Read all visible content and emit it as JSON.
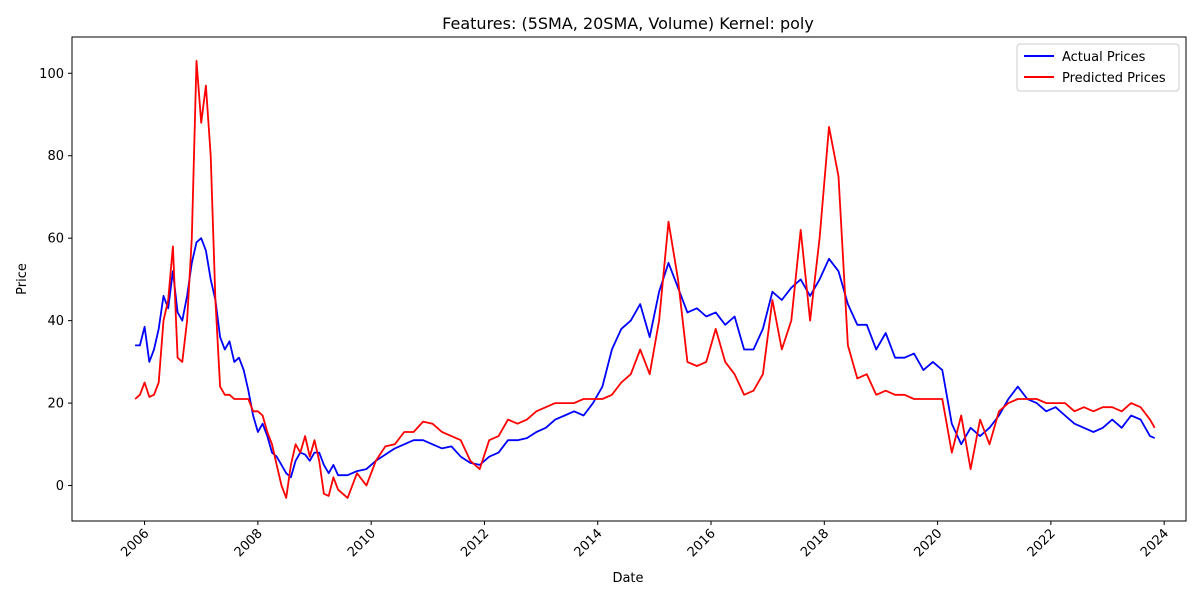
{
  "chart_data": {
    "type": "line",
    "title": "Features: (5SMA, 20SMA, Volume) Kernel: poly",
    "xlabel": "Date",
    "ylabel": "Price",
    "x_ticks": [
      "2006",
      "2008",
      "2010",
      "2012",
      "2014",
      "2016",
      "2018",
      "2020",
      "2022",
      "2024"
    ],
    "y_ticks": [
      "0",
      "20",
      "40",
      "60",
      "80",
      "100"
    ],
    "xlim": [
      "2004-09-20",
      "2024-05-20"
    ],
    "ylim": [
      -8.6,
      108.8
    ],
    "grid": false,
    "legend_position": "top-right",
    "series": [
      {
        "name": "Actual Prices",
        "color": "#0000ff",
        "points": [
          [
            "2005-11-01",
            34
          ],
          [
            "2005-12-01",
            34
          ],
          [
            "2006-01-01",
            38.5
          ],
          [
            "2006-02-01",
            30
          ],
          [
            "2006-03-01",
            33
          ],
          [
            "2006-04-01",
            38
          ],
          [
            "2006-05-01",
            46
          ],
          [
            "2006-06-01",
            43
          ],
          [
            "2006-07-01",
            52
          ],
          [
            "2006-08-01",
            42
          ],
          [
            "2006-09-01",
            40
          ],
          [
            "2006-10-01",
            46
          ],
          [
            "2006-11-01",
            54
          ],
          [
            "2006-12-01",
            59
          ],
          [
            "2007-01-01",
            60
          ],
          [
            "2007-02-01",
            57
          ],
          [
            "2007-03-01",
            50
          ],
          [
            "2007-04-01",
            45
          ],
          [
            "2007-05-01",
            36
          ],
          [
            "2007-06-01",
            33
          ],
          [
            "2007-07-01",
            35
          ],
          [
            "2007-08-01",
            30
          ],
          [
            "2007-09-01",
            31
          ],
          [
            "2007-10-01",
            28
          ],
          [
            "2007-11-01",
            23
          ],
          [
            "2007-12-01",
            17
          ],
          [
            "2008-01-01",
            13
          ],
          [
            "2008-02-01",
            15
          ],
          [
            "2008-03-01",
            12
          ],
          [
            "2008-04-01",
            8
          ],
          [
            "2008-05-01",
            7
          ],
          [
            "2008-06-01",
            5
          ],
          [
            "2008-07-01",
            3
          ],
          [
            "2008-08-01",
            2
          ],
          [
            "2008-09-01",
            6
          ],
          [
            "2008-10-01",
            8
          ],
          [
            "2008-11-01",
            7.5
          ],
          [
            "2008-12-01",
            6
          ],
          [
            "2009-01-01",
            8
          ],
          [
            "2009-02-01",
            8
          ],
          [
            "2009-03-01",
            5
          ],
          [
            "2009-04-01",
            3
          ],
          [
            "2009-05-01",
            5
          ],
          [
            "2009-06-01",
            2.5
          ],
          [
            "2009-08-01",
            2.5
          ],
          [
            "2009-10-01",
            3.5
          ],
          [
            "2009-12-01",
            4
          ],
          [
            "2010-02-01",
            6
          ],
          [
            "2010-04-01",
            7.5
          ],
          [
            "2010-06-01",
            9
          ],
          [
            "2010-08-01",
            10
          ],
          [
            "2010-10-01",
            11
          ],
          [
            "2010-12-01",
            11
          ],
          [
            "2011-02-01",
            10
          ],
          [
            "2011-04-01",
            9
          ],
          [
            "2011-06-01",
            9.5
          ],
          [
            "2011-08-01",
            7
          ],
          [
            "2011-10-01",
            5.5
          ],
          [
            "2011-12-01",
            5
          ],
          [
            "2012-02-01",
            7
          ],
          [
            "2012-04-01",
            8
          ],
          [
            "2012-06-01",
            11
          ],
          [
            "2012-08-01",
            11
          ],
          [
            "2012-10-01",
            11.5
          ],
          [
            "2012-12-01",
            13
          ],
          [
            "2013-02-01",
            14
          ],
          [
            "2013-04-01",
            16
          ],
          [
            "2013-06-01",
            17
          ],
          [
            "2013-08-01",
            18
          ],
          [
            "2013-10-01",
            17
          ],
          [
            "2013-12-01",
            20
          ],
          [
            "2014-02-01",
            24
          ],
          [
            "2014-04-01",
            33
          ],
          [
            "2014-06-01",
            38
          ],
          [
            "2014-08-01",
            40
          ],
          [
            "2014-10-01",
            44
          ],
          [
            "2014-12-01",
            36
          ],
          [
            "2015-02-01",
            47
          ],
          [
            "2015-04-01",
            54
          ],
          [
            "2015-06-01",
            48
          ],
          [
            "2015-08-01",
            42
          ],
          [
            "2015-10-01",
            43
          ],
          [
            "2015-12-01",
            41
          ],
          [
            "2016-02-01",
            42
          ],
          [
            "2016-04-01",
            39
          ],
          [
            "2016-06-01",
            41
          ],
          [
            "2016-08-01",
            33
          ],
          [
            "2016-10-01",
            33
          ],
          [
            "2016-12-01",
            38
          ],
          [
            "2017-02-01",
            47
          ],
          [
            "2017-04-01",
            45
          ],
          [
            "2017-06-01",
            48
          ],
          [
            "2017-08-01",
            50
          ],
          [
            "2017-10-01",
            46
          ],
          [
            "2017-12-01",
            50
          ],
          [
            "2018-02-01",
            55
          ],
          [
            "2018-04-01",
            52
          ],
          [
            "2018-06-01",
            44
          ],
          [
            "2018-08-01",
            39
          ],
          [
            "2018-10-01",
            39
          ],
          [
            "2018-12-01",
            33
          ],
          [
            "2019-02-01",
            37
          ],
          [
            "2019-04-01",
            31
          ],
          [
            "2019-06-01",
            31
          ],
          [
            "2019-08-01",
            32
          ],
          [
            "2019-10-01",
            28
          ],
          [
            "2019-12-01",
            30
          ],
          [
            "2020-02-01",
            28
          ],
          [
            "2020-04-01",
            15
          ],
          [
            "2020-06-01",
            10
          ],
          [
            "2020-08-01",
            14
          ],
          [
            "2020-10-01",
            12
          ],
          [
            "2020-12-01",
            14
          ],
          [
            "2021-02-01",
            17
          ],
          [
            "2021-04-01",
            21
          ],
          [
            "2021-06-01",
            24
          ],
          [
            "2021-08-01",
            21
          ],
          [
            "2021-10-01",
            20
          ],
          [
            "2021-12-01",
            18
          ],
          [
            "2022-02-01",
            19
          ],
          [
            "2022-04-01",
            17
          ],
          [
            "2022-06-01",
            15
          ],
          [
            "2022-08-01",
            14
          ],
          [
            "2022-10-01",
            13
          ],
          [
            "2022-12-01",
            14
          ],
          [
            "2023-02-01",
            16
          ],
          [
            "2023-04-01",
            14
          ],
          [
            "2023-06-01",
            17
          ],
          [
            "2023-08-01",
            16
          ],
          [
            "2023-10-01",
            12
          ],
          [
            "2023-11-01",
            11.5
          ]
        ]
      },
      {
        "name": "Predicted Prices",
        "color": "#ff0000",
        "points": [
          [
            "2005-11-01",
            21
          ],
          [
            "2005-12-01",
            22
          ],
          [
            "2006-01-01",
            25
          ],
          [
            "2006-02-01",
            21.5
          ],
          [
            "2006-03-01",
            22
          ],
          [
            "2006-04-01",
            25
          ],
          [
            "2006-05-01",
            40
          ],
          [
            "2006-06-01",
            45
          ],
          [
            "2006-07-01",
            58
          ],
          [
            "2006-08-01",
            31
          ],
          [
            "2006-09-01",
            30
          ],
          [
            "2006-10-01",
            40
          ],
          [
            "2006-11-01",
            60
          ],
          [
            "2006-12-01",
            103
          ],
          [
            "2007-01-01",
            88
          ],
          [
            "2007-02-01",
            97
          ],
          [
            "2007-03-01",
            80
          ],
          [
            "2007-04-01",
            45
          ],
          [
            "2007-05-01",
            24
          ],
          [
            "2007-06-01",
            22
          ],
          [
            "2007-07-01",
            22
          ],
          [
            "2007-08-01",
            21
          ],
          [
            "2007-09-01",
            21
          ],
          [
            "2007-10-01",
            21
          ],
          [
            "2007-11-01",
            21
          ],
          [
            "2007-12-01",
            18
          ],
          [
            "2008-01-01",
            18
          ],
          [
            "2008-02-01",
            17
          ],
          [
            "2008-03-01",
            13
          ],
          [
            "2008-04-01",
            10
          ],
          [
            "2008-05-01",
            5
          ],
          [
            "2008-06-01",
            0
          ],
          [
            "2008-07-01",
            -3
          ],
          [
            "2008-08-01",
            5
          ],
          [
            "2008-09-01",
            10
          ],
          [
            "2008-10-01",
            8
          ],
          [
            "2008-11-01",
            12
          ],
          [
            "2008-12-01",
            7
          ],
          [
            "2009-01-01",
            11
          ],
          [
            "2009-02-01",
            6
          ],
          [
            "2009-03-01",
            -2
          ],
          [
            "2009-04-01",
            -2.5
          ],
          [
            "2009-05-01",
            2
          ],
          [
            "2009-06-01",
            -1
          ],
          [
            "2009-08-01",
            -3
          ],
          [
            "2009-10-01",
            3
          ],
          [
            "2009-12-01",
            0
          ],
          [
            "2010-02-01",
            6
          ],
          [
            "2010-04-01",
            9.5
          ],
          [
            "2010-06-01",
            10
          ],
          [
            "2010-08-01",
            13
          ],
          [
            "2010-10-01",
            13
          ],
          [
            "2010-12-01",
            15.5
          ],
          [
            "2011-02-01",
            15
          ],
          [
            "2011-04-01",
            13
          ],
          [
            "2011-06-01",
            12
          ],
          [
            "2011-08-01",
            11
          ],
          [
            "2011-10-01",
            6
          ],
          [
            "2011-12-01",
            4
          ],
          [
            "2012-02-01",
            11
          ],
          [
            "2012-04-01",
            12
          ],
          [
            "2012-06-01",
            16
          ],
          [
            "2012-08-01",
            15
          ],
          [
            "2012-10-01",
            16
          ],
          [
            "2012-12-01",
            18
          ],
          [
            "2013-02-01",
            19
          ],
          [
            "2013-04-01",
            20
          ],
          [
            "2013-06-01",
            20
          ],
          [
            "2013-08-01",
            20
          ],
          [
            "2013-10-01",
            21
          ],
          [
            "2013-12-01",
            21
          ],
          [
            "2014-02-01",
            21
          ],
          [
            "2014-04-01",
            22
          ],
          [
            "2014-06-01",
            25
          ],
          [
            "2014-08-01",
            27
          ],
          [
            "2014-10-01",
            33
          ],
          [
            "2014-12-01",
            27
          ],
          [
            "2015-02-01",
            40
          ],
          [
            "2015-04-01",
            64
          ],
          [
            "2015-06-01",
            50
          ],
          [
            "2015-08-01",
            30
          ],
          [
            "2015-10-01",
            29
          ],
          [
            "2015-12-01",
            30
          ],
          [
            "2016-02-01",
            38
          ],
          [
            "2016-04-01",
            30
          ],
          [
            "2016-06-01",
            27
          ],
          [
            "2016-08-01",
            22
          ],
          [
            "2016-10-01",
            23
          ],
          [
            "2016-12-01",
            27
          ],
          [
            "2017-02-01",
            45
          ],
          [
            "2017-04-01",
            33
          ],
          [
            "2017-06-01",
            40
          ],
          [
            "2017-08-01",
            62
          ],
          [
            "2017-10-01",
            40
          ],
          [
            "2017-12-01",
            60
          ],
          [
            "2018-02-01",
            87
          ],
          [
            "2018-04-01",
            75
          ],
          [
            "2018-06-01",
            34
          ],
          [
            "2018-08-01",
            26
          ],
          [
            "2018-10-01",
            27
          ],
          [
            "2018-12-01",
            22
          ],
          [
            "2019-02-01",
            23
          ],
          [
            "2019-04-01",
            22
          ],
          [
            "2019-06-01",
            22
          ],
          [
            "2019-08-01",
            21
          ],
          [
            "2019-10-01",
            21
          ],
          [
            "2019-12-01",
            21
          ],
          [
            "2020-02-01",
            21
          ],
          [
            "2020-04-01",
            8
          ],
          [
            "2020-06-01",
            17
          ],
          [
            "2020-08-01",
            4
          ],
          [
            "2020-10-01",
            16
          ],
          [
            "2020-12-01",
            10
          ],
          [
            "2021-02-01",
            18
          ],
          [
            "2021-04-01",
            20
          ],
          [
            "2021-06-01",
            21
          ],
          [
            "2021-08-01",
            21
          ],
          [
            "2021-10-01",
            21
          ],
          [
            "2021-12-01",
            20
          ],
          [
            "2022-02-01",
            20
          ],
          [
            "2022-04-01",
            20
          ],
          [
            "2022-06-01",
            18
          ],
          [
            "2022-08-01",
            19
          ],
          [
            "2022-10-01",
            18
          ],
          [
            "2022-12-01",
            19
          ],
          [
            "2023-02-01",
            19
          ],
          [
            "2023-04-01",
            18
          ],
          [
            "2023-06-01",
            20
          ],
          [
            "2023-08-01",
            19
          ],
          [
            "2023-10-01",
            16
          ],
          [
            "2023-11-01",
            14
          ]
        ]
      }
    ]
  }
}
